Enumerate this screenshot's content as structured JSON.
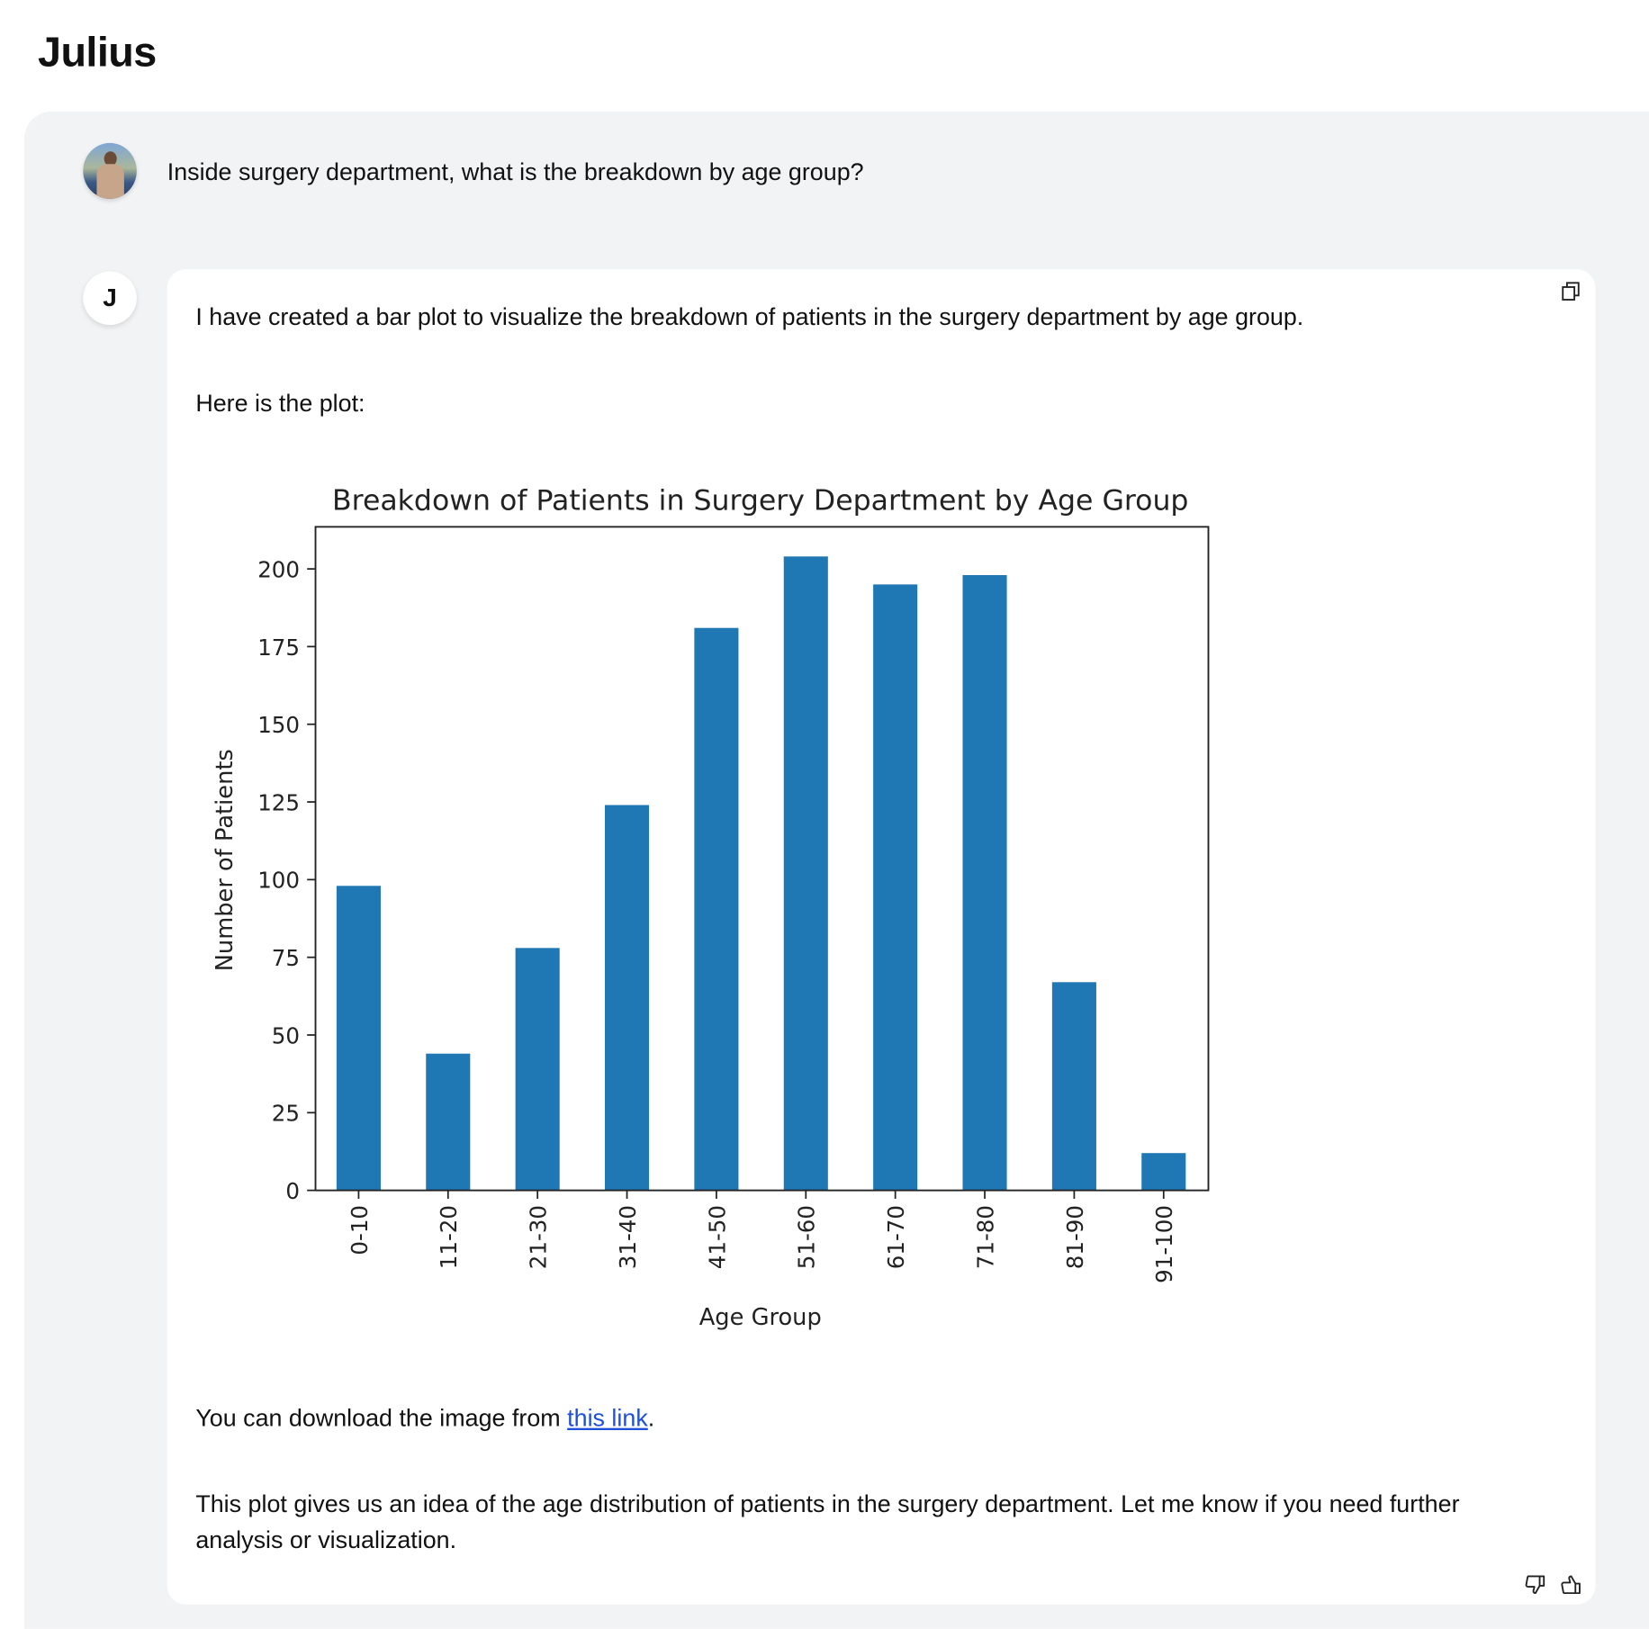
{
  "app": {
    "title": "Julius"
  },
  "user_message": {
    "text": "Inside surgery department, what is the breakdown by age group?"
  },
  "assistant": {
    "avatar_letter": "J",
    "intro": "I have created a bar plot to visualize the breakdown of patients in the surgery department by age group.",
    "here": "Here is the plot:",
    "download_prefix": "You can download the image from ",
    "download_link": "this link",
    "download_suffix": ".",
    "closing": "This plot gives us an idea of the age distribution of patients in the surgery department. Let me know if you need further analysis or visualization."
  },
  "icons": {
    "copy": "copy-icon",
    "thumbs_down": "thumbs-down-icon",
    "thumbs_up": "thumbs-up-icon"
  },
  "chart_data": {
    "type": "bar",
    "title": "Breakdown of Patients in Surgery Department by Age Group",
    "xlabel": "Age Group",
    "ylabel": "Number of Patients",
    "categories": [
      "0-10",
      "11-20",
      "21-30",
      "31-40",
      "41-50",
      "51-60",
      "61-70",
      "71-80",
      "81-90",
      "91-100"
    ],
    "values": [
      98,
      44,
      78,
      124,
      181,
      204,
      195,
      198,
      67,
      12
    ],
    "ylim": [
      0,
      214
    ],
    "yticks": [
      0,
      25,
      50,
      75,
      100,
      125,
      150,
      175,
      200
    ],
    "grid": false,
    "color": "#1f77b4"
  }
}
